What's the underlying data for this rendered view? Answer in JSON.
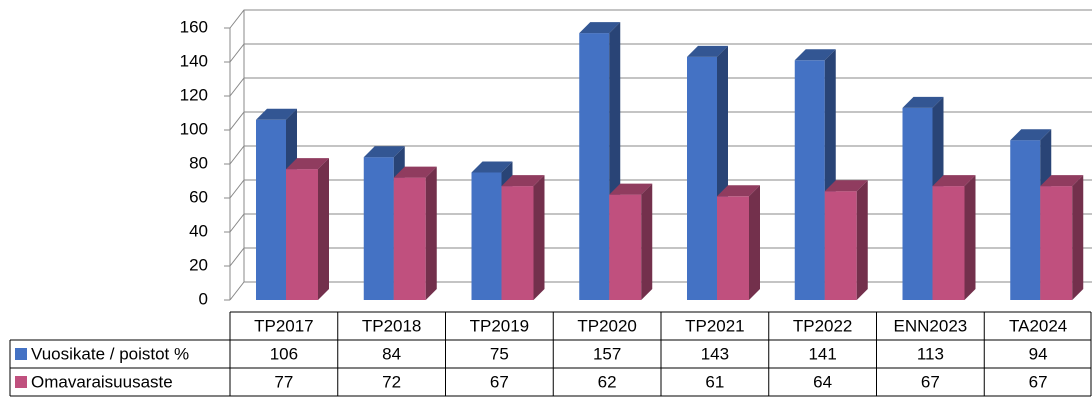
{
  "chart_data": {
    "type": "bar3d",
    "categories": [
      "TP2017",
      "TP2018",
      "TP2019",
      "TP2020",
      "TP2021",
      "TP2022",
      "ENN2023",
      "TA2024"
    ],
    "series": [
      {
        "name": "Vuosikate / poistot %",
        "color": "#4472c4",
        "values": [
          106,
          84,
          75,
          157,
          143,
          141,
          113,
          94
        ]
      },
      {
        "name": "Omavaraisuusaste",
        "color": "#c0507e",
        "values": [
          77,
          72,
          67,
          62,
          61,
          64,
          67,
          67
        ]
      }
    ],
    "ylim": [
      0,
      160
    ],
    "yticks": [
      0,
      20,
      40,
      60,
      80,
      100,
      120,
      140,
      160
    ],
    "grid": true,
    "data_table": true
  }
}
